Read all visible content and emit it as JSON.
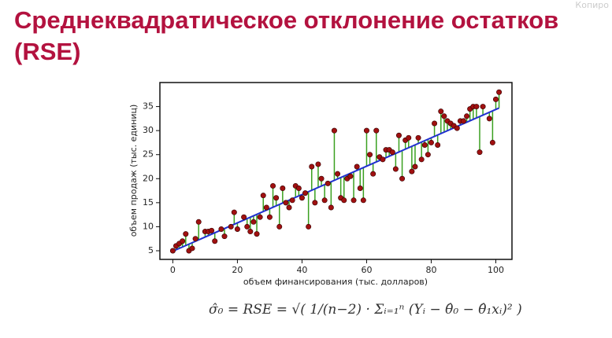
{
  "slide": {
    "title": "Среднеквадратическое отклонение остатков (RSE)",
    "watermark": "Копиро",
    "formula": "σ̂₀ = RSE = √( 1/(n−2) · Σᵢ₌₁ⁿ (Yᵢ − θ̂₀ − θ̂₁xᵢ)² )"
  },
  "chart_data": {
    "type": "scatter",
    "xlabel": "объем финансирования (тыс. долларов)",
    "ylabel": "объем продаж (тыс. единиц)",
    "xlim": [
      -4,
      105
    ],
    "ylim": [
      3.2,
      40
    ],
    "xticks": [
      0,
      20,
      40,
      60,
      80,
      100
    ],
    "yticks": [
      5,
      10,
      15,
      20,
      25,
      30,
      35
    ],
    "point_color": "#a01010",
    "residual_color": "#3aa020",
    "fit_color": "#2030d0",
    "fit": {
      "intercept": 4.9,
      "slope": 0.295
    },
    "x": [
      0,
      1,
      2,
      3,
      4,
      5,
      6,
      7,
      8,
      10,
      11,
      12,
      13,
      15,
      16,
      18,
      19,
      20,
      22,
      23,
      24,
      25,
      26,
      27,
      28,
      29,
      30,
      31,
      32,
      33,
      34,
      35,
      36,
      37,
      38,
      39,
      40,
      41,
      42,
      43,
      44,
      45,
      46,
      47,
      48,
      49,
      50,
      51,
      52,
      53,
      54,
      55,
      56,
      57,
      58,
      59,
      60,
      61,
      62,
      63,
      64,
      65,
      66,
      67,
      68,
      69,
      70,
      71,
      72,
      73,
      74,
      75,
      76,
      77,
      78,
      79,
      80,
      81,
      82,
      83,
      84,
      85,
      86,
      87,
      88,
      89,
      90,
      91,
      92,
      93,
      94,
      95,
      96,
      98,
      99,
      100,
      101
    ],
    "values": [
      5,
      6,
      6.5,
      7,
      8.5,
      5,
      5.5,
      7.5,
      11,
      9,
      9,
      9.2,
      7,
      9.5,
      8,
      10,
      13,
      9.5,
      12,
      10,
      9,
      11,
      8.5,
      12,
      16.5,
      14,
      12,
      18.5,
      16,
      10,
      18,
      15,
      14,
      15.5,
      18.5,
      18,
      16,
      17,
      10,
      22.5,
      15,
      23,
      20,
      15.5,
      19,
      14,
      30,
      21,
      16,
      15.5,
      20,
      20.5,
      15.5,
      22.5,
      18,
      15.5,
      30,
      25,
      21,
      30,
      24.5,
      24,
      26,
      26,
      25.5,
      22,
      29,
      20,
      28,
      28.5,
      21.5,
      22.5,
      28.5,
      24,
      27,
      25,
      27.5,
      31.5,
      27,
      34,
      33,
      32,
      31.5,
      31,
      30.5,
      32,
      32,
      33,
      34.5,
      35,
      35,
      25.5,
      35,
      32.5,
      27.5,
      36.5,
      38
    ]
  }
}
